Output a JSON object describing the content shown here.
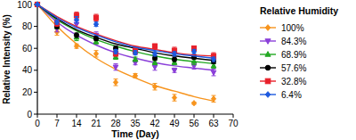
{
  "chart_data": {
    "type": "line",
    "x_label": "Time (Day)",
    "y_label": "Relative Intensity (%)",
    "legend_title": "Relative Humidity",
    "legend": "right",
    "x": [
      0,
      7,
      14,
      21,
      28,
      35,
      42,
      49,
      56,
      63
    ],
    "xlim": [
      0,
      70
    ],
    "xticks": [
      0,
      7,
      14,
      21,
      28,
      35,
      42,
      49,
      56,
      63,
      70
    ],
    "ylim": [
      0,
      100
    ],
    "yticks": [
      0,
      20,
      40,
      60,
      80,
      100
    ],
    "series": [
      {
        "name": "100%",
        "color": "#f7941d",
        "marker": "diamond",
        "values": [
          100,
          75,
          62,
          55,
          29,
          35,
          25,
          15,
          10,
          14
        ],
        "errors": [
          0,
          3,
          2,
          3,
          3,
          2,
          3,
          3,
          1,
          3
        ],
        "fit": [
          100,
          80,
          64,
          51,
          41,
          33,
          26,
          21,
          16,
          12
        ]
      },
      {
        "name": "84.3%",
        "color": "#8b3fd9",
        "marker": "triangle-down",
        "values": [
          100,
          78,
          82,
          72,
          43,
          47,
          43,
          40,
          44,
          38
        ],
        "errors": [
          0,
          3,
          3,
          3,
          3,
          2,
          3,
          2,
          3,
          3
        ],
        "fit": [
          100,
          84,
          72,
          63,
          56,
          51,
          47,
          44,
          42,
          40
        ]
      },
      {
        "name": "68.9%",
        "color": "#22a822",
        "marker": "triangle-up",
        "values": [
          100,
          80,
          70,
          66,
          52,
          50,
          47,
          47,
          48,
          44
        ],
        "errors": [
          0,
          2,
          3,
          2,
          2,
          2,
          2,
          2,
          3,
          2
        ],
        "fit": [
          100,
          86,
          76,
          68,
          62,
          57,
          53,
          50,
          48,
          46
        ]
      },
      {
        "name": "57.6%",
        "color": "#000000",
        "marker": "circle",
        "values": [
          100,
          80,
          72,
          69,
          60,
          57,
          51,
          50,
          52,
          48
        ],
        "errors": [
          0,
          2,
          2,
          2,
          2,
          2,
          2,
          2,
          2,
          2
        ],
        "fit": [
          100,
          87,
          77,
          70,
          64,
          60,
          56,
          53,
          51,
          49
        ]
      },
      {
        "name": "32.8%",
        "color": "#e8202a",
        "marker": "square",
        "values": [
          100,
          83,
          90,
          88,
          55,
          58,
          62,
          58,
          60,
          53
        ],
        "errors": [
          0,
          3,
          3,
          3,
          2,
          3,
          2,
          3,
          2,
          3
        ],
        "fit": [
          100,
          89,
          80,
          73,
          67,
          62,
          59,
          56,
          54,
          53
        ]
      },
      {
        "name": "6.4%",
        "color": "#1e5adf",
        "marker": "diamond",
        "values": [
          100,
          84,
          86,
          82,
          57,
          56,
          55,
          55,
          57,
          50
        ],
        "errors": [
          0,
          2,
          3,
          2,
          2,
          2,
          2,
          2,
          2,
          2
        ],
        "fit": [
          100,
          88,
          79,
          72,
          66,
          61,
          58,
          55,
          53,
          51
        ]
      }
    ]
  }
}
